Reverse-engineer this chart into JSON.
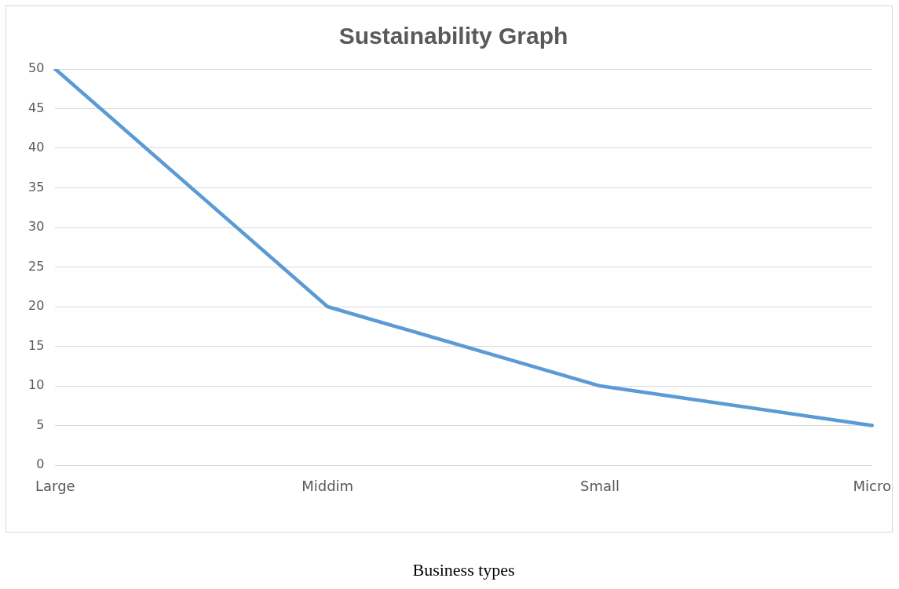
{
  "chart_data": {
    "type": "line",
    "title": "Sustainability Graph",
    "xlabel": "Business types",
    "categories": [
      "Large",
      "Middim",
      "Small",
      "Micro"
    ],
    "series": [
      {
        "color": "#5b9bd5",
        "values": [
          50,
          20,
          10,
          5
        ]
      }
    ],
    "ylim": [
      0,
      50
    ],
    "yticks": [
      0,
      5,
      10,
      15,
      20,
      25,
      30,
      35,
      40,
      45,
      50
    ],
    "grid": "y",
    "legend": false,
    "marker": "none",
    "line_style": "solid"
  }
}
